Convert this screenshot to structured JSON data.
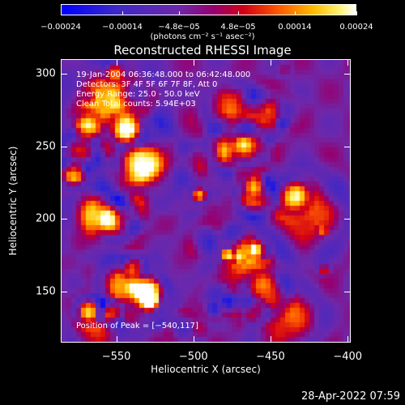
{
  "chart_data": {
    "type": "heatmap",
    "title": "Reconstructed RHESSI Image",
    "xlabel": "Heliocentric X (arcsec)",
    "ylabel": "Heliocentric Y (arcsec)",
    "xlim": [
      -586,
      -398
    ],
    "ylim": [
      115,
      310
    ],
    "x_ticks": [
      "−550",
      "−500",
      "−450",
      "−400"
    ],
    "x_tick_values": [
      -550,
      -500,
      -450,
      -400
    ],
    "y_ticks": [
      "150",
      "200",
      "250",
      "300"
    ],
    "y_tick_values": [
      150,
      200,
      250,
      300
    ],
    "colorbar": {
      "ticks": [
        "−0.00024",
        "−0.00014",
        "−4.8e−05",
        "4.8e−05",
        "0.00014",
        "0.00024"
      ],
      "tick_values": [
        -0.00024,
        -0.00014,
        -4.8e-05,
        4.8e-05,
        0.00014,
        0.00024
      ],
      "label": "(photons cm⁻² s⁻¹ asec⁻²)",
      "range": [
        -0.00024,
        0.00024
      ]
    },
    "info_lines": [
      "19-Jan-2004 06:36:48.000 to 06:42:48.000",
      "Detectors: 3F 4F 5F 6F 7F 8F, Att 0",
      "Energy Range: 25.0 - 50.0 keV",
      "Clean     Total counts: 5.94E+03"
    ],
    "peak_label": "Position of Peak = [−540,117]",
    "peak_position": [
      -540,
      117
    ]
  },
  "timestamp": "28-Apr-2022 07:59"
}
